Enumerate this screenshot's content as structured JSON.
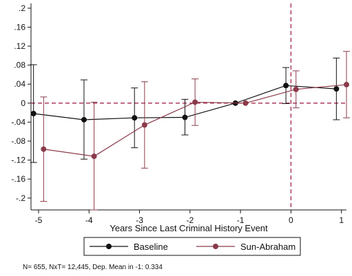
{
  "chart_data": {
    "type": "line",
    "title": "",
    "xlabel": "Years Since Last Criminal History Event",
    "ylabel": "",
    "x_ticks": [
      -5,
      -4,
      -3,
      -2,
      -1,
      0,
      1
    ],
    "y_ticks": [
      0.2,
      0.16,
      0.12,
      0.08,
      0.04,
      0,
      -0.04,
      -0.08,
      -0.12,
      -0.16,
      -0.2
    ],
    "y_tick_labels": [
      ".2",
      ".16",
      ".12",
      ".08",
      ".04",
      "0",
      "-.04",
      "-.08",
      "-.12",
      "-.16",
      "-.2"
    ],
    "xlim": [
      -5.15,
      1.1
    ],
    "ylim": [
      -0.225,
      0.21
    ],
    "reference_lines": {
      "y": 0,
      "x": 0,
      "color": "#a3284d",
      "style": "dashed"
    },
    "grid": false,
    "legend_position": "bottom",
    "series": [
      {
        "name": "Baseline",
        "color": "#111111",
        "marker": "circle",
        "x": [
          -5.1,
          -4.1,
          -3.1,
          -2.1,
          -1.1,
          -0.1,
          0.9
        ],
        "y": [
          -0.022,
          -0.035,
          -0.031,
          -0.03,
          0,
          0.037,
          0.03
        ],
        "ci_low": [
          -0.125,
          -0.118,
          -0.094,
          -0.067,
          0,
          -0.001,
          -0.035
        ],
        "ci_high": [
          0.081,
          0.049,
          0.032,
          0.008,
          0,
          0.075,
          0.095
        ]
      },
      {
        "name": "Sun-Abraham",
        "color": "#8b3a4a",
        "marker": "circle",
        "x": [
          -4.9,
          -3.9,
          -2.9,
          -1.9,
          -0.9,
          0.1,
          1.1
        ],
        "y": [
          -0.097,
          -0.112,
          -0.046,
          0.002,
          0,
          0.029,
          0.039
        ],
        "ci_low": [
          -0.207,
          -0.225,
          -0.137,
          -0.047,
          0,
          -0.01,
          -0.031
        ],
        "ci_high": [
          0.013,
          0.002,
          0.045,
          0.051,
          0,
          0.068,
          0.109
        ]
      }
    ],
    "note": "N=  655, NxT= 12,445, Dep. Mean in -1: 0.334"
  }
}
